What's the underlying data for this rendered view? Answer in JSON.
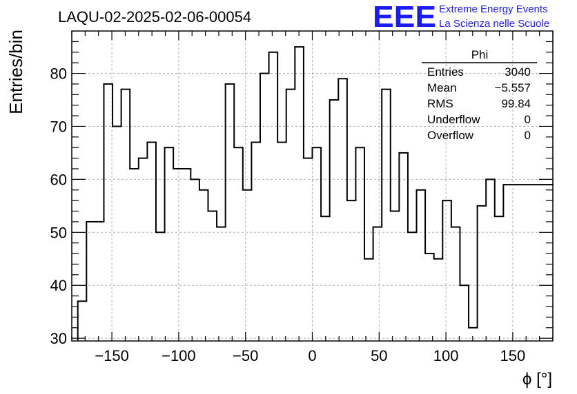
{
  "title": "LAQU-02-2025-02-06-00054",
  "logo": {
    "text": "EEE",
    "line1": "Extreme Energy Events",
    "line2": "La Scienza nelle Scuole",
    "color": "#1a1aff"
  },
  "stats": {
    "name": "Phi",
    "rows": [
      {
        "label": "Entries",
        "value": "3040"
      },
      {
        "label": "Mean",
        "value": "−5.557"
      },
      {
        "label": "RMS",
        "value": "99.84"
      },
      {
        "label": "Underflow",
        "value": "0"
      },
      {
        "label": "Overflow",
        "value": "0"
      }
    ]
  },
  "chart_data": {
    "type": "bar",
    "style": "histogram-step",
    "xlabel": "ϕ [°]",
    "ylabel": "Entries/bin",
    "xlim": [
      -180,
      180
    ],
    "ylim": [
      29.5,
      88
    ],
    "bin_width": 6.5,
    "x_start": -175.5,
    "x_end": 180,
    "xticks": [
      -150,
      -100,
      -50,
      0,
      50,
      100,
      150
    ],
    "xtick_labels": [
      "−150",
      "−100",
      "−50",
      "0",
      "50",
      "100",
      "150"
    ],
    "yticks": [
      30,
      40,
      50,
      60,
      70,
      80
    ],
    "ytick_labels": [
      "30",
      "40",
      "50",
      "60",
      "70",
      "80"
    ],
    "grid": true,
    "values": [
      37,
      52,
      52,
      78,
      70,
      77,
      62,
      64,
      67,
      50,
      66,
      62,
      62,
      60,
      58,
      54,
      51,
      78,
      66,
      58,
      67,
      80,
      84,
      67,
      77,
      85,
      64,
      66,
      53,
      75,
      79,
      56,
      66,
      45,
      51,
      77,
      54,
      65,
      50,
      58,
      46,
      45,
      56,
      51,
      40,
      32,
      55,
      60,
      53,
      59
    ]
  }
}
